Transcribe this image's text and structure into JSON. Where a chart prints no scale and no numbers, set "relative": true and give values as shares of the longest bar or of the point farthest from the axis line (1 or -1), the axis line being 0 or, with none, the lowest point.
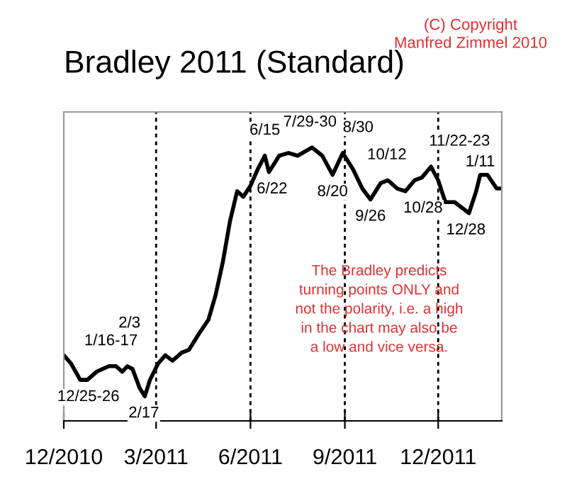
{
  "chart_data": {
    "type": "line",
    "title": "Bradley 2011 (Standard)",
    "relative": true,
    "grid": false,
    "legend": false,
    "marker": "none",
    "line_style": "solid",
    "x": [
      "2010-12-01",
      "2010-12-08",
      "2010-12-17",
      "2010-12-24",
      "2011-01-02",
      "2011-01-14",
      "2011-01-21",
      "2011-01-27",
      "2011-02-01",
      "2011-02-06",
      "2011-02-13",
      "2011-02-18",
      "2011-02-23",
      "2011-03-03",
      "2011-03-10",
      "2011-03-17",
      "2011-03-26",
      "2011-04-02",
      "2011-04-12",
      "2011-04-21",
      "2011-04-28",
      "2011-05-05",
      "2011-05-12",
      "2011-05-19",
      "2011-05-25",
      "2011-06-01",
      "2011-06-08",
      "2011-06-15",
      "2011-06-19",
      "2011-06-29",
      "2011-07-08",
      "2011-07-17",
      "2011-07-31",
      "2011-08-10",
      "2011-08-20",
      "2011-08-30",
      "2011-09-09",
      "2011-09-18",
      "2011-09-26",
      "2011-10-06",
      "2011-10-13",
      "2011-10-22",
      "2011-10-30",
      "2011-11-08",
      "2011-11-15",
      "2011-11-24",
      "2011-12-01",
      "2011-12-08",
      "2011-12-17",
      "2011-12-24",
      "2011-12-31",
      "2012-01-07",
      "2012-01-11",
      "2012-01-18",
      "2012-01-27",
      "2012-01-31"
    ],
    "series": [
      {
        "color": "#000000",
        "values": [
          0.24,
          0.21,
          0.15,
          0.15,
          0.18,
          0.2,
          0.2,
          0.18,
          0.2,
          0.19,
          0.12,
          0.09,
          0.15,
          0.21,
          0.24,
          0.22,
          0.25,
          0.26,
          0.32,
          0.37,
          0.46,
          0.58,
          0.73,
          0.84,
          0.82,
          0.86,
          0.92,
          0.97,
          0.91,
          0.97,
          0.98,
          0.97,
          1,
          0.97,
          0.9,
          0.98,
          0.92,
          0.85,
          0.81,
          0.87,
          0.88,
          0.85,
          0.84,
          0.88,
          0.89,
          0.93,
          0.88,
          0.8,
          0.8,
          0.78,
          0.76,
          0.84,
          0.9,
          0.9,
          0.85,
          0.85
        ]
      }
    ],
    "xlim": [
      "2010-12-01",
      "2012-02-01"
    ],
    "xticks": [
      {
        "value": "2010-12-01",
        "label": "12/2010"
      },
      {
        "value": "2011-03-01",
        "label": "3/2011"
      },
      {
        "value": "2011-06-01",
        "label": "6/2011"
      },
      {
        "value": "2011-09-01",
        "label": "9/2011"
      },
      {
        "value": "2011-12-01",
        "label": "12/2011"
      }
    ],
    "ref_lines": [
      {
        "axis": "x",
        "value": "2011-03-01",
        "color": "#000000",
        "line_style": "dashed"
      },
      {
        "axis": "x",
        "value": "2011-06-01",
        "color": "#000000",
        "line_style": "dashed"
      },
      {
        "axis": "x",
        "value": "2011-09-01",
        "color": "#000000",
        "line_style": "dashed"
      },
      {
        "axis": "x",
        "value": "2011-12-01",
        "color": "#000000",
        "line_style": "dashed"
      }
    ],
    "annotations": [
      {
        "text": "12/25-26",
        "x": "2010-12-25",
        "y": 0.15
      },
      {
        "text": "1/16-17",
        "x": "2011-01-16",
        "y": 0.2
      },
      {
        "text": "2/3",
        "x": "2011-02-03",
        "y": 0.2
      },
      {
        "text": "2/17",
        "x": "2011-02-17",
        "y": 0.09
      },
      {
        "text": "6/15",
        "x": "2011-06-15",
        "y": 0.97
      },
      {
        "text": "6/22",
        "x": "2011-06-22",
        "y": 0.91
      },
      {
        "text": "7/29-30",
        "x": "2011-07-29",
        "y": 1
      },
      {
        "text": "8/20",
        "x": "2011-08-20",
        "y": 0.9
      },
      {
        "text": "8/30",
        "x": "2011-08-30",
        "y": 0.98
      },
      {
        "text": "9/26",
        "x": "2011-09-26",
        "y": 0.81
      },
      {
        "text": "10/12",
        "x": "2011-10-12",
        "y": 0.88
      },
      {
        "text": "10/28",
        "x": "2011-10-28",
        "y": 0.84
      },
      {
        "text": "11/22-23",
        "x": "2011-11-22",
        "y": 0.93
      },
      {
        "text": "12/28",
        "x": "2011-12-28",
        "y": 0.76
      },
      {
        "text": "1/11",
        "x": "2012-01-11",
        "y": 0.9
      },
      "The Bradley predicts\nturning points ONLY and\nnot the polarity, i.e. a high\nin the chart may also be\na low and vice versa.",
      "(C) Copyright\nManfred Zimmel 2010"
    ]
  }
}
